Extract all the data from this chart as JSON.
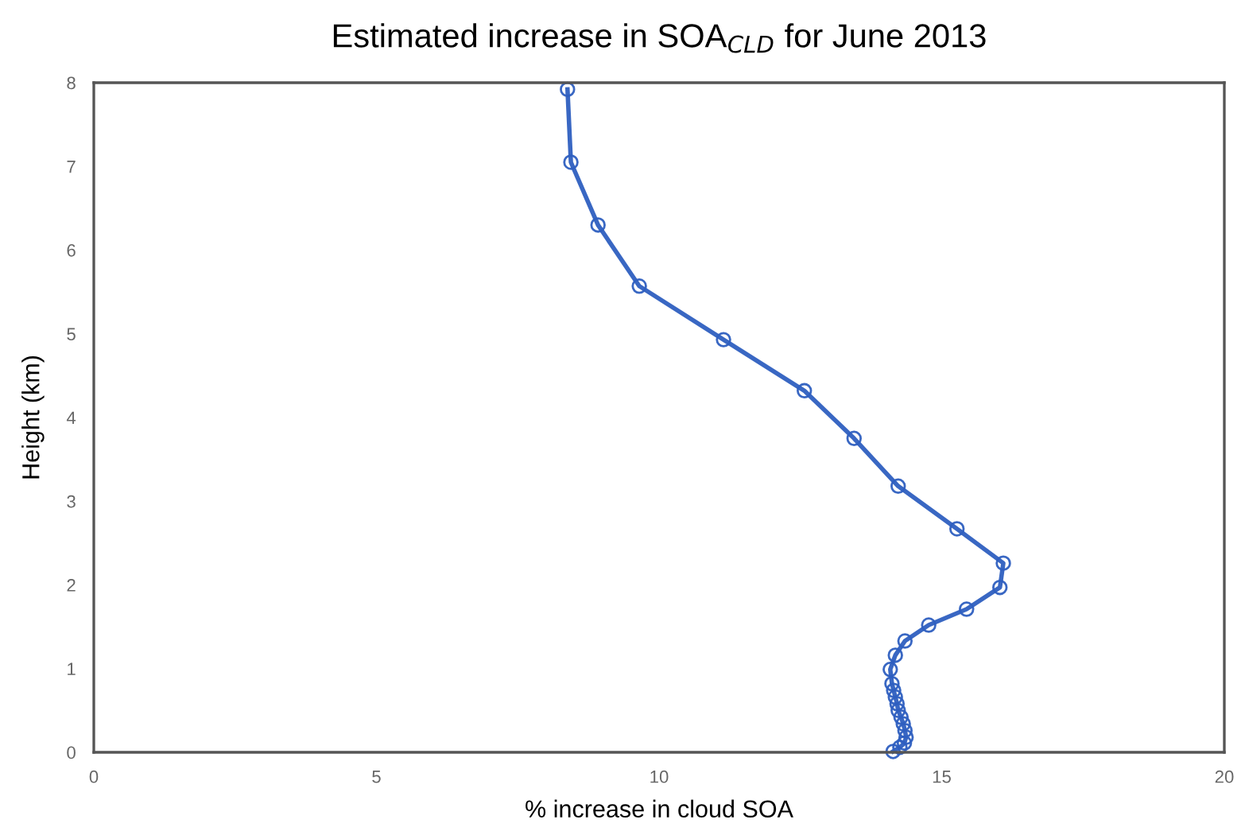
{
  "chart_data": {
    "type": "line",
    "title": "Estimated increase in SOA$_{CLD}$ for June 2013",
    "xlabel": "% increase in cloud SOA",
    "ylabel": "Height (km)",
    "xlim": [
      0,
      20
    ],
    "xticks": [
      0,
      5,
      10,
      15,
      20
    ],
    "ylim": [
      0,
      8
    ],
    "yticks": [
      0,
      1,
      2,
      3,
      4,
      5,
      6,
      7,
      8
    ],
    "grid": false,
    "marker": "circle",
    "line_style": "solid",
    "series": [
      {
        "color": "#2e5fc0",
        "x": [
          8.38,
          8.44,
          8.92,
          9.65,
          11.14,
          12.57,
          13.45,
          14.23,
          15.27,
          16.09,
          16.03,
          15.44,
          14.77,
          14.35,
          14.18,
          14.09,
          14.12,
          14.15,
          14.18,
          14.21,
          14.23,
          14.28,
          14.32,
          14.35,
          14.37,
          14.34,
          14.26,
          14.14
        ],
        "values": [
          7.92,
          7.05,
          6.3,
          5.57,
          4.93,
          4.32,
          3.75,
          3.18,
          2.67,
          2.26,
          1.97,
          1.71,
          1.52,
          1.33,
          1.16,
          0.99,
          0.82,
          0.74,
          0.66,
          0.58,
          0.5,
          0.42,
          0.34,
          0.26,
          0.18,
          0.11,
          0.06,
          0.01
        ]
      }
    ]
  }
}
